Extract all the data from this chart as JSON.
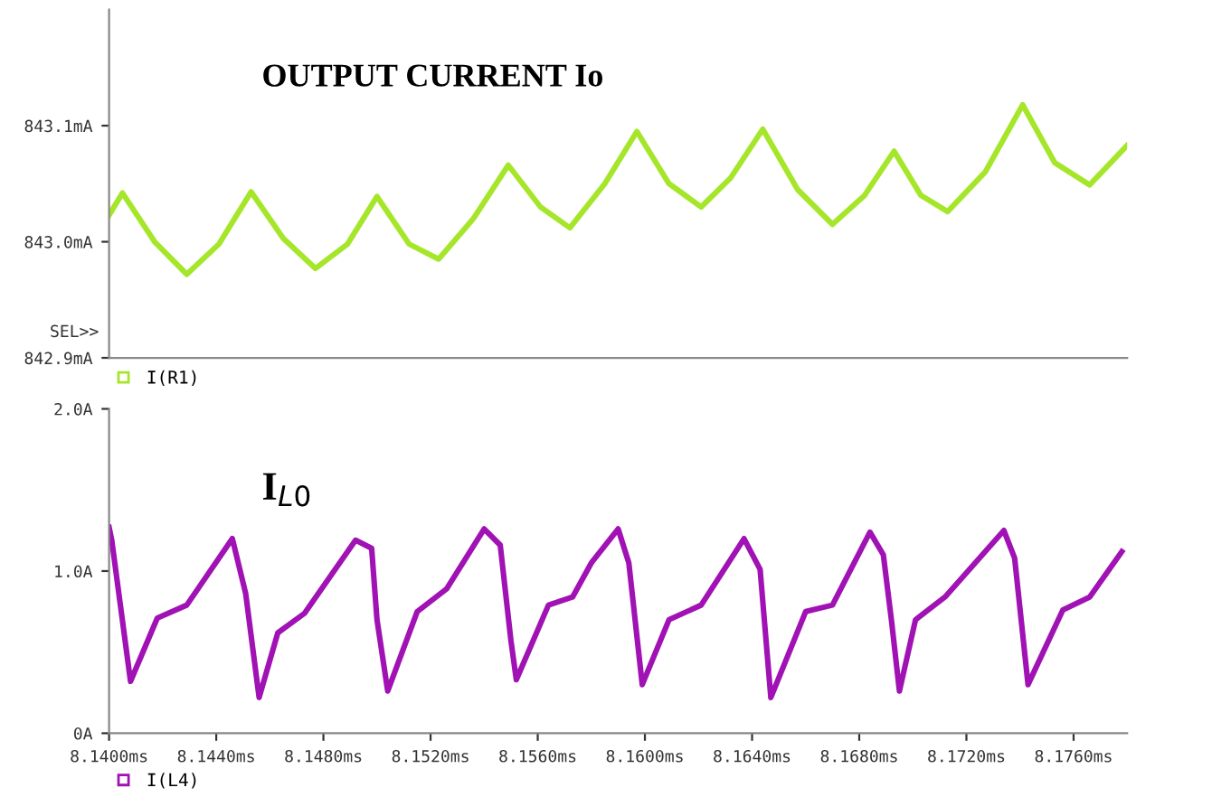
{
  "chart_data": [
    {
      "type": "line",
      "annotations": [
        "OUTPUT CURRENT Io",
        "SEL>>"
      ],
      "xlim": [
        8.14,
        8.178
      ],
      "tick_labels": "y",
      "ylim": [
        842.9,
        843.2
      ],
      "yticks": [
        {
          "value": 842.9,
          "label": "842.9mA"
        },
        {
          "value": 843.0,
          "label": "843.0mA"
        },
        {
          "value": 843.1,
          "label": "843.1mA"
        }
      ],
      "legend": "bottom left",
      "grid": false,
      "series": [
        {
          "name": "I(R1)",
          "color": "#a6e62a",
          "x": [
            8.14,
            8.1405,
            8.1417,
            8.1429,
            8.1441,
            8.1453,
            8.1465,
            8.1477,
            8.1489,
            8.15,
            8.1512,
            8.1523,
            8.1536,
            8.1549,
            8.1561,
            8.1572,
            8.1585,
            8.1597,
            8.1609,
            8.1621,
            8.1632,
            8.1644,
            8.1657,
            8.167,
            8.1682,
            8.1693,
            8.1703,
            8.1713,
            8.1727,
            8.1741,
            8.1753,
            8.1766,
            8.178
          ],
          "values": [
            843.023,
            843.042,
            843.0,
            842.972,
            842.998,
            843.043,
            843.003,
            842.977,
            842.998,
            843.039,
            842.998,
            842.985,
            843.02,
            843.066,
            843.03,
            843.012,
            843.05,
            843.095,
            843.05,
            843.03,
            843.055,
            843.097,
            843.045,
            843.015,
            843.04,
            843.078,
            843.04,
            843.026,
            843.06,
            843.118,
            843.068,
            843.049,
            843.083
          ]
        }
      ]
    },
    {
      "type": "line",
      "annotations": [
        "I$_{L0}$"
      ],
      "xlim": [
        8.14,
        8.178
      ],
      "xticks": [
        {
          "value": 8.14,
          "label": "8.1400ms"
        },
        {
          "value": 8.144,
          "label": "8.1440ms"
        },
        {
          "value": 8.148,
          "label": "8.1480ms"
        },
        {
          "value": 8.152,
          "label": "8.1520ms"
        },
        {
          "value": 8.156,
          "label": "8.1560ms"
        },
        {
          "value": 8.16,
          "label": "8.1600ms"
        },
        {
          "value": 8.164,
          "label": "8.1640ms"
        },
        {
          "value": 8.168,
          "label": "8.1680ms"
        },
        {
          "value": 8.172,
          "label": "8.1720ms"
        },
        {
          "value": 8.176,
          "label": "8.1760ms"
        }
      ],
      "ylim": [
        0,
        2.0
      ],
      "yticks": [
        {
          "value": 0,
          "label": "0A"
        },
        {
          "value": 1.0,
          "label": "1.0A"
        },
        {
          "value": 2.0,
          "label": "2.0A"
        }
      ],
      "legend": "bottom left",
      "grid": false,
      "series": [
        {
          "name": "I(L4)",
          "color": "#a012b4",
          "x": [
            8.14,
            8.1401,
            8.1408,
            8.1418,
            8.1429,
            8.1446,
            8.1451,
            8.1456,
            8.1463,
            8.1473,
            8.1492,
            8.1498,
            8.15,
            8.1504,
            8.1515,
            8.1526,
            8.154,
            8.1546,
            8.155,
            8.1552,
            8.1564,
            8.1573,
            8.158,
            8.159,
            8.1594,
            8.1599,
            8.1609,
            8.1621,
            8.1637,
            8.1643,
            8.1647,
            8.166,
            8.167,
            8.1684,
            8.1689,
            8.1692,
            8.1695,
            8.1701,
            8.1712,
            8.1734,
            8.1738,
            8.1743,
            8.1756,
            8.1766,
            8.1778
          ],
          "values": [
            1.27,
            1.19,
            0.32,
            0.71,
            0.79,
            1.2,
            0.86,
            0.22,
            0.62,
            0.74,
            1.19,
            1.14,
            0.7,
            0.26,
            0.75,
            0.89,
            1.26,
            1.16,
            0.57,
            0.33,
            0.79,
            0.84,
            1.05,
            1.26,
            1.05,
            0.3,
            0.7,
            0.79,
            1.2,
            1.01,
            0.22,
            0.75,
            0.79,
            1.24,
            1.1,
            0.7,
            0.26,
            0.7,
            0.84,
            1.25,
            1.08,
            0.3,
            0.76,
            0.84,
            1.12
          ]
        }
      ]
    }
  ]
}
